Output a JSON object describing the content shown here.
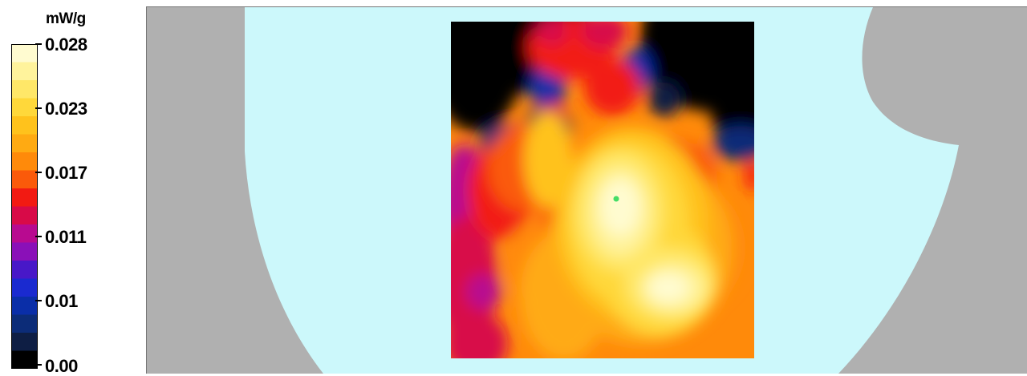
{
  "chart_data": {
    "type": "heatmap",
    "unit": "mW/g",
    "scale": {
      "min": 0.0,
      "max": 0.028,
      "tick_labels": [
        "0.028",
        "0.023",
        "0.017",
        "0.011",
        "0.01",
        "0.00"
      ]
    },
    "colors": {
      "background": "#b0b0b0",
      "phantom": "#ccf8fb",
      "peak_marker": "#44dd66"
    },
    "palette": [
      "#000000",
      "#0e1e44",
      "#0c2c78",
      "#0a2ea8",
      "#1a2ad0",
      "#4818c8",
      "#8a10b8",
      "#b80a90",
      "#d80a48",
      "#f21a12",
      "#fa5a0a",
      "#ff8a0a",
      "#ffaa12",
      "#ffc21c",
      "#ffd83a",
      "#ffe768",
      "#fff39c",
      "#fffbd0"
    ],
    "legend_position": "left",
    "grid": false
  }
}
